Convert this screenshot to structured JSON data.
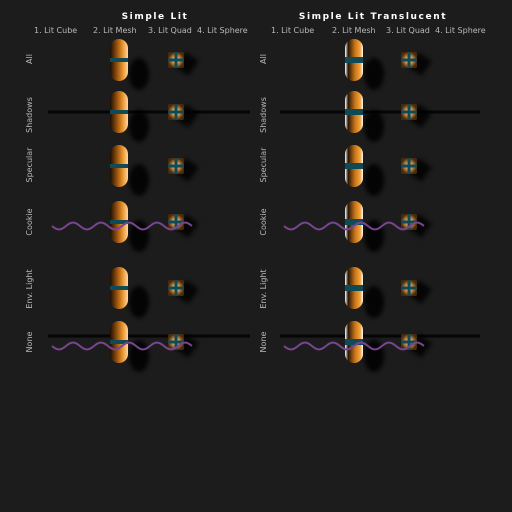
{
  "panels": [
    {
      "title": "Simple Lit",
      "columns": [
        "1. Lit Cube",
        "2. Lit Mesh",
        "3. Lit Quad",
        "4. Lit Sphere"
      ],
      "rows": [
        "All",
        "Shadows",
        "Specular",
        "Cookie",
        "Env. Light",
        "None"
      ]
    },
    {
      "title": "Simple Lit Translucent",
      "columns": [
        "1. Lit Cube",
        "2. Lit Mesh",
        "3. Lit Quad",
        "4. Lit Sphere"
      ],
      "rows": [
        "All",
        "Shadows",
        "Specular",
        "Cookie",
        "Env. Light",
        "None"
      ]
    }
  ],
  "colors": {
    "background": "#1c1c1c",
    "capsule_orange": "#e08a1e",
    "stripe_teal": "#0f4a58",
    "wave_purple": "#7a4590",
    "ground_line": "#050505",
    "shadow": "#000000"
  }
}
